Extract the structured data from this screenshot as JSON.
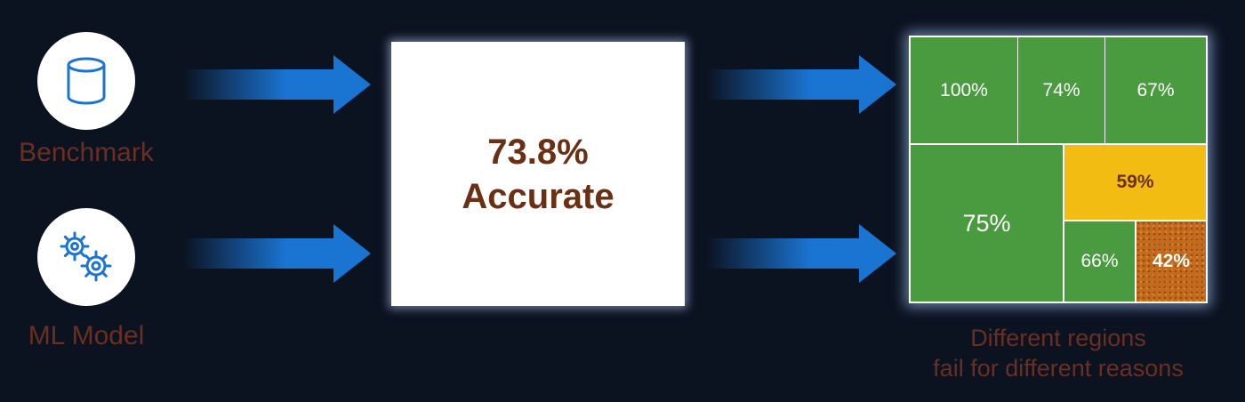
{
  "inputs": {
    "benchmark": {
      "label": "Benchmark",
      "icon": "database-icon"
    },
    "model": {
      "label": "ML Model",
      "icon": "gears-icon"
    }
  },
  "result": {
    "percent": "73.8%",
    "text": "Accurate"
  },
  "treemap": {
    "cells": {
      "r1c1": "100%",
      "r1c2": "74%",
      "r1c3": "67%",
      "big": "75%",
      "yellow": "59%",
      "bottom_left": "66%",
      "bottom_right": "42%"
    }
  },
  "caption": {
    "line1": "Different regions",
    "line2": "fail for different reasons"
  },
  "colors": {
    "background": "#0b1220",
    "arrow": "#1a74d2",
    "label_text": "#6b2f22",
    "green": "#4a9a3f",
    "yellow": "#f2bc12",
    "orange": "#c46a1d"
  }
}
